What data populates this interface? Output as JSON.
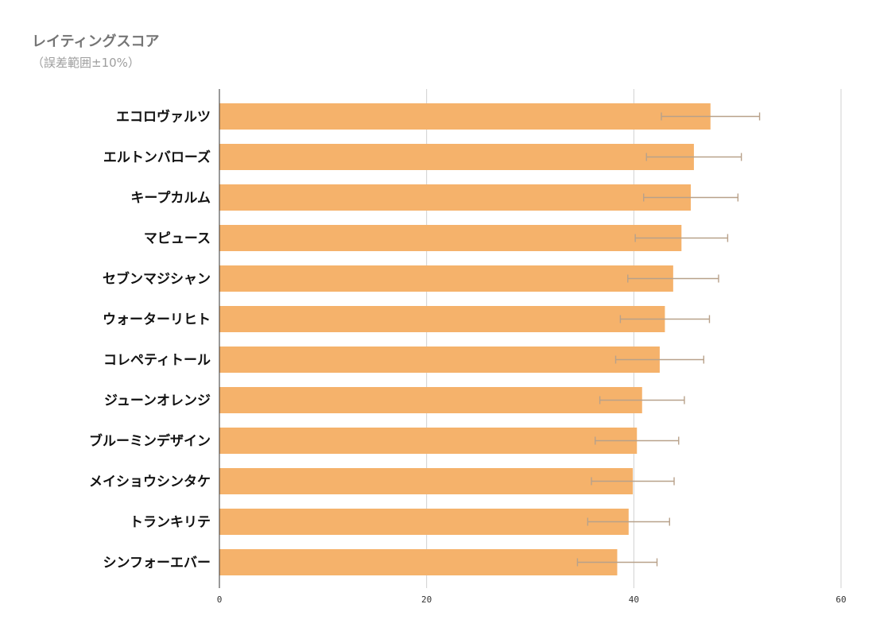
{
  "chart_data": {
    "type": "bar",
    "orientation": "horizontal",
    "title": "レイティングスコア",
    "subtitle": "（誤差範囲±10%）",
    "xlabel": "",
    "ylabel": "",
    "xlim": [
      0,
      60
    ],
    "x_ticks": [
      0,
      20,
      40,
      60
    ],
    "grid": true,
    "bar_color": "#f5b26b",
    "error_bar_color": "#b8a18a",
    "error_fraction": 0.1,
    "categories": [
      "エコロヴァルツ",
      "エルトンバローズ",
      "キープカルム",
      "マピュース",
      "セブンマジシャン",
      "ウォーターリヒト",
      "コレペティトール",
      "ジューンオレンジ",
      "ブルーミンデザイン",
      "メイショウシンタケ",
      "トランキリテ",
      "シンフォーエバー"
    ],
    "values": [
      47.4,
      45.8,
      45.5,
      44.6,
      43.8,
      43.0,
      42.5,
      40.8,
      40.3,
      39.9,
      39.5,
      38.4
    ]
  }
}
